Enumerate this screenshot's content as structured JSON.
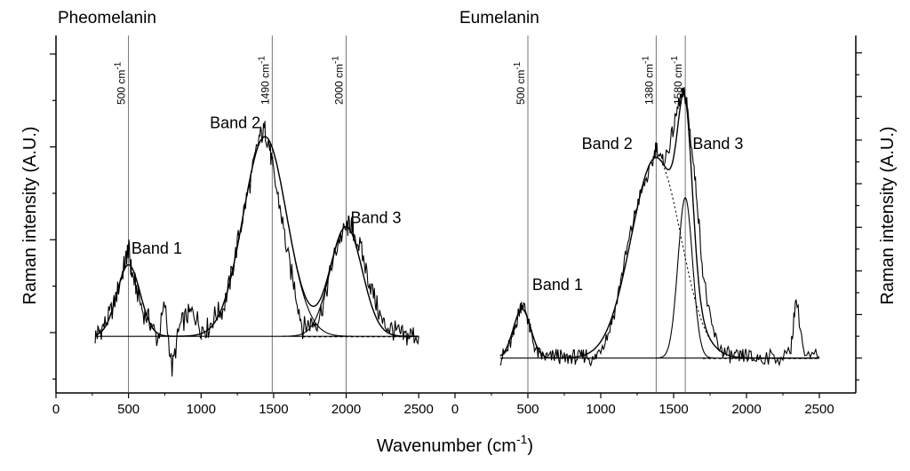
{
  "figure": {
    "xlabel": "Wavenumber (cm",
    "xlabel_sup": "-1",
    "xlabel_close": ")",
    "ylabel": "Raman intensity (A.U.)"
  },
  "chart_data": [
    {
      "type": "line",
      "title": "Pheomelanin",
      "xlabel": "Wavenumber (cm-1)",
      "ylabel": "Raman intensity (A.U.)",
      "xlim": [
        0,
        2750
      ],
      "ylim": [
        -0.65,
        3.2
      ],
      "x_ticks": [
        0,
        500,
        1000,
        1500,
        2000,
        2500
      ],
      "y_ticks_unlabeled": [
        -0.5,
        0,
        0.5,
        1,
        1.5,
        2,
        2.5,
        3
      ],
      "grid": false,
      "reference_lines": [
        {
          "x": 500,
          "label": "500 cm",
          "sup": "-1"
        },
        {
          "x": 1490,
          "label": "1490 cm",
          "sup": "-1"
        },
        {
          "x": 2000,
          "label": "2000 cm",
          "sup": "-1"
        }
      ],
      "annotations": [
        {
          "text": "Band 1",
          "x": 520,
          "y": 0.85
        },
        {
          "text": "Band 2",
          "x": 1060,
          "y": 2.2
        },
        {
          "text": "Band 3",
          "x": 2030,
          "y": 1.18
        }
      ],
      "baseline": {
        "x": [
          270,
          2500
        ],
        "y": [
          -0.04,
          -0.04
        ]
      },
      "bands": [
        {
          "name": "Band 1",
          "center": 500,
          "amplitude": 0.77,
          "width": 80
        },
        {
          "name": "Band 2",
          "center": 1440,
          "amplitude": 2.15,
          "width": 150
        },
        {
          "name": "Band 3",
          "center": 2000,
          "amplitude": 1.18,
          "width": 110
        }
      ],
      "series": [
        {
          "style": "noisy",
          "x": [
            270,
            300,
            350,
            400,
            450,
            480,
            500,
            520,
            550,
            600,
            650,
            700,
            750,
            800,
            850,
            900,
            950,
            1000,
            1050,
            1100,
            1150,
            1200,
            1250,
            1300,
            1350,
            1400,
            1440,
            1470,
            1500,
            1550,
            1600,
            1650,
            1700,
            1750,
            1800,
            1850,
            1900,
            1950,
            2000,
            2030,
            2050,
            2100,
            2150,
            2200,
            2250,
            2300,
            2350,
            2400,
            2450,
            2500
          ],
          "y": [
            -0.04,
            0.01,
            0.12,
            0.3,
            0.6,
            0.78,
            0.92,
            0.66,
            0.5,
            0.22,
            0.12,
            -0.08,
            0.3,
            -0.4,
            0.05,
            0.18,
            0.22,
            0.05,
            0.05,
            0.2,
            0.25,
            0.55,
            0.95,
            1.35,
            1.7,
            2.1,
            2.18,
            2.02,
            1.7,
            1.3,
            0.8,
            0.45,
            0.05,
            0.1,
            0.12,
            0.35,
            0.72,
            1.0,
            1.12,
            1.17,
            1.08,
            0.9,
            0.6,
            0.35,
            0.1,
            0.05,
            0.0,
            -0.05,
            -0.02,
            -0.04
          ]
        }
      ]
    },
    {
      "type": "line",
      "title": "Eumelanin",
      "xlabel": "Wavenumber (cm-1)",
      "ylabel": "Raman intensity (A.U.)",
      "xlim": [
        0,
        2750
      ],
      "ylim": [
        -0.2,
        1.85
      ],
      "x_ticks": [
        0,
        500,
        1000,
        1500,
        2000,
        2500
      ],
      "y_ticks_unlabeled": [
        -0.125,
        0,
        0.125,
        0.25,
        0.375,
        0.5,
        0.625,
        0.75,
        0.875,
        1.0,
        1.125,
        1.25,
        1.375,
        1.5,
        1.625,
        1.75
      ],
      "grid": false,
      "reference_lines": [
        {
          "x": 500,
          "label": "500 cm",
          "sup": "-1"
        },
        {
          "x": 1380,
          "label": "1380 cm",
          "sup": "-1"
        },
        {
          "x": 1580,
          "label": "1580 cm",
          "sup": "-1"
        }
      ],
      "annotations": [
        {
          "text": "Band 1",
          "x": 530,
          "y": 0.39
        },
        {
          "text": "Band 2",
          "x": 870,
          "y": 1.2
        },
        {
          "text": "Band 3",
          "x": 1630,
          "y": 1.2
        }
      ],
      "baseline": {
        "x": [
          310,
          2500
        ],
        "y": [
          0,
          0
        ]
      },
      "bands": [
        {
          "name": "Band 1",
          "center": 460,
          "amplitude": 0.28,
          "width": 60
        },
        {
          "name": "Band 2",
          "center": 1380,
          "amplitude": 1.15,
          "width": 170
        },
        {
          "name": "Band 3",
          "center": 1580,
          "amplitude": 0.92,
          "width": 50
        }
      ],
      "series": [
        {
          "style": "noisy",
          "x": [
            310,
            350,
            400,
            430,
            460,
            490,
            520,
            560,
            600,
            650,
            700,
            750,
            800,
            850,
            900,
            950,
            1000,
            1050,
            1100,
            1150,
            1200,
            1250,
            1300,
            1350,
            1380,
            1420,
            1460,
            1500,
            1540,
            1570,
            1590,
            1620,
            1660,
            1700,
            1750,
            1800,
            1850,
            1900,
            1950,
            2000,
            2050,
            2100,
            2200,
            2300,
            2340,
            2400,
            2500
          ],
          "y": [
            0.0,
            0.03,
            0.12,
            0.24,
            0.32,
            0.26,
            0.14,
            0.03,
            0.01,
            0.0,
            0.02,
            -0.01,
            0.01,
            0.0,
            0.02,
            -0.02,
            0.06,
            0.14,
            0.28,
            0.5,
            0.7,
            0.88,
            1.0,
            1.1,
            1.22,
            1.12,
            1.18,
            1.32,
            1.48,
            1.52,
            1.47,
            1.24,
            0.92,
            0.5,
            0.22,
            0.08,
            0.03,
            0.01,
            0.0,
            0.02,
            -0.01,
            0.01,
            0.0,
            0.02,
            0.35,
            0.0,
            0.01
          ]
        }
      ]
    }
  ]
}
